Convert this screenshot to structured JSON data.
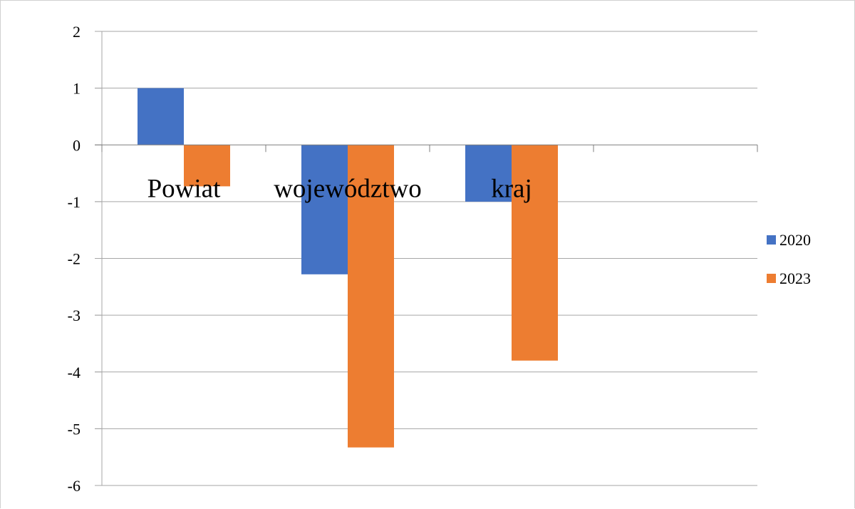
{
  "chart_data": {
    "type": "bar",
    "categories": [
      "Powiat",
      "województwo",
      "kraj"
    ],
    "series": [
      {
        "name": "2020",
        "values": [
          1.0,
          -2.28,
          -1.0
        ],
        "color": "#4472C4"
      },
      {
        "name": "2023",
        "values": [
          -0.73,
          -5.33,
          -3.8
        ],
        "color": "#ED7D31"
      }
    ],
    "ylim": [
      -6,
      2
    ],
    "yticks": [
      2,
      1,
      0,
      -1,
      -2,
      -3,
      -4,
      -5,
      -6
    ],
    "grid": true,
    "legend_position": "right"
  }
}
